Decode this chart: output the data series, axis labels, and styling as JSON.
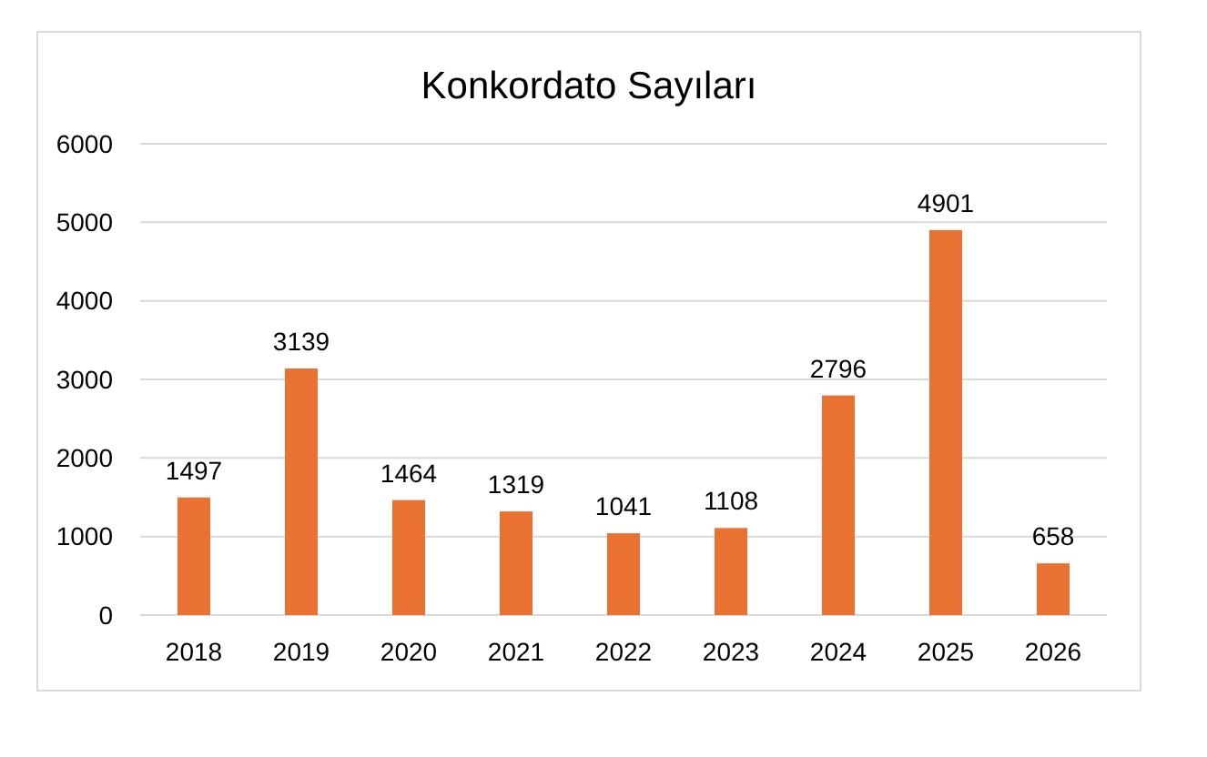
{
  "chart_data": {
    "type": "bar",
    "title": "Konkordato Sayıları",
    "categories": [
      "2018",
      "2019",
      "2020",
      "2021",
      "2022",
      "2023",
      "2024",
      "2025",
      "2026"
    ],
    "values": [
      1497,
      3139,
      1464,
      1319,
      1041,
      1108,
      2796,
      4901,
      658
    ],
    "color": "#e97132",
    "ylim": [
      0,
      6000
    ],
    "yticks": [
      0,
      1000,
      2000,
      3000,
      4000,
      5000,
      6000
    ],
    "grid": "y",
    "data_labels": true
  }
}
